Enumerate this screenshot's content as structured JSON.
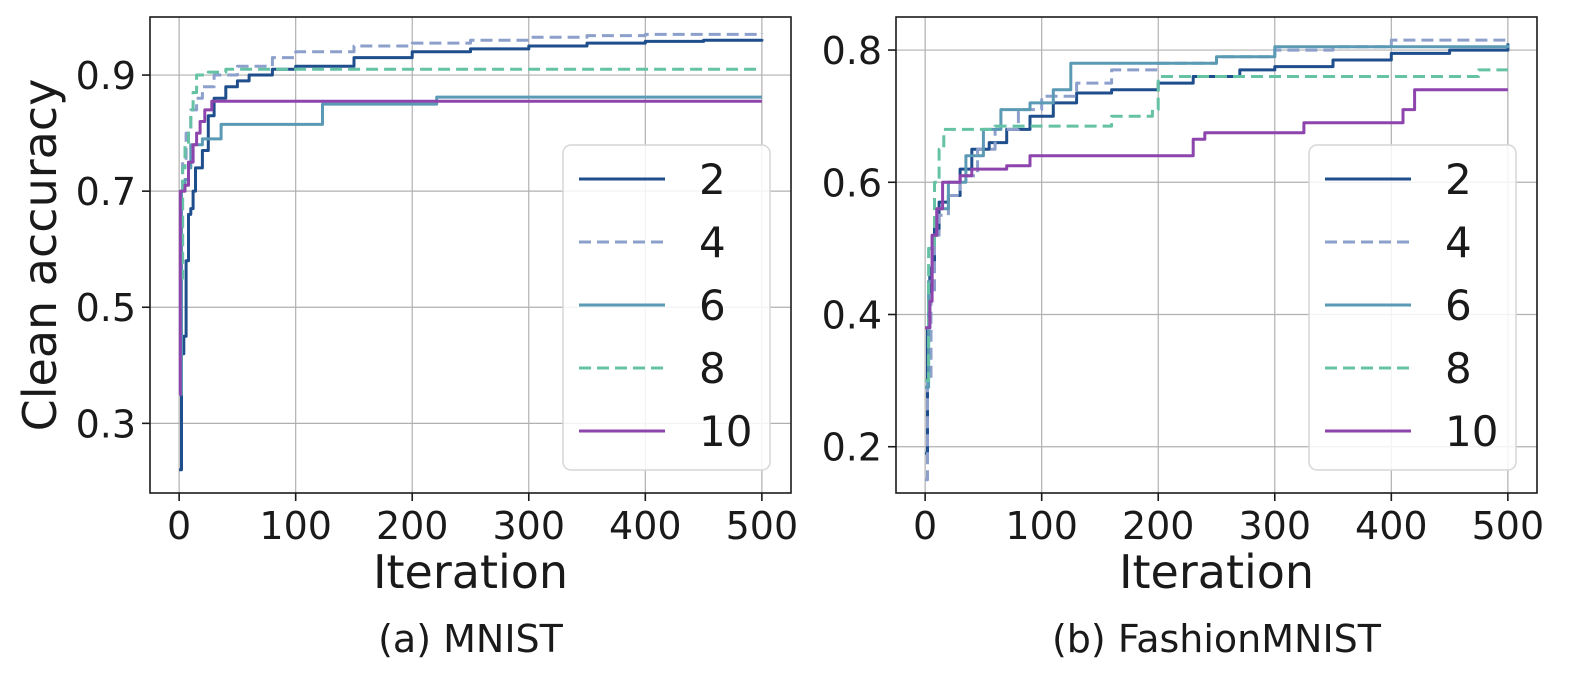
{
  "chart_data": [
    {
      "type": "line",
      "caption": "(a) MNIST",
      "xlabel": "Iteration",
      "ylabel": "Clean accuracy",
      "xlim": [
        -25,
        525
      ],
      "ylim": [
        0.18,
        1.0
      ],
      "xticks": [
        0,
        100,
        200,
        300,
        400,
        500
      ],
      "xtick_labels": [
        "0",
        "100",
        "200",
        "300",
        "400",
        "500"
      ],
      "yticks": [
        0.3,
        0.5,
        0.7,
        0.9
      ],
      "ytick_labels": [
        "0.3",
        "0.5",
        "0.7",
        "0.9"
      ],
      "grid": true,
      "legend_position": "lower-right",
      "series": [
        {
          "name": "2",
          "color": "#1f4e8c",
          "dash": "solid",
          "points": [
            [
              0,
              0.22
            ],
            [
              2,
              0.42
            ],
            [
              4,
              0.45
            ],
            [
              6,
              0.58
            ],
            [
              8,
              0.66
            ],
            [
              10,
              0.67
            ],
            [
              12,
              0.7
            ],
            [
              14,
              0.74
            ],
            [
              20,
              0.77
            ],
            [
              25,
              0.83
            ],
            [
              30,
              0.86
            ],
            [
              40,
              0.88
            ],
            [
              50,
              0.89
            ],
            [
              60,
              0.9
            ],
            [
              80,
              0.91
            ],
            [
              100,
              0.915
            ],
            [
              150,
              0.93
            ],
            [
              200,
              0.94
            ],
            [
              250,
              0.945
            ],
            [
              300,
              0.95
            ],
            [
              350,
              0.955
            ],
            [
              400,
              0.958
            ],
            [
              450,
              0.96
            ],
            [
              500,
              0.962
            ]
          ]
        },
        {
          "name": "4",
          "color": "#8da0cb",
          "dash": "dashed",
          "points": [
            [
              0,
              0.58
            ],
            [
              3,
              0.75
            ],
            [
              6,
              0.8
            ],
            [
              10,
              0.84
            ],
            [
              15,
              0.86
            ],
            [
              20,
              0.88
            ],
            [
              30,
              0.9
            ],
            [
              50,
              0.915
            ],
            [
              80,
              0.93
            ],
            [
              100,
              0.94
            ],
            [
              150,
              0.95
            ],
            [
              200,
              0.955
            ],
            [
              250,
              0.96
            ],
            [
              300,
              0.965
            ],
            [
              350,
              0.968
            ],
            [
              400,
              0.97
            ],
            [
              500,
              0.972
            ]
          ]
        },
        {
          "name": "6",
          "color": "#5b9ab5",
          "dash": "solid",
          "points": [
            [
              0,
              0.35
            ],
            [
              2,
              0.7
            ],
            [
              5,
              0.72
            ],
            [
              8,
              0.74
            ],
            [
              10,
              0.78
            ],
            [
              20,
              0.79
            ],
            [
              35,
              0.79
            ],
            [
              36,
              0.815
            ],
            [
              122,
              0.815
            ],
            [
              123,
              0.85
            ],
            [
              220,
              0.85
            ],
            [
              221,
              0.862
            ],
            [
              500,
              0.862
            ]
          ]
        },
        {
          "name": "8",
          "color": "#66c2a5",
          "dash": "dashed",
          "points": [
            [
              0,
              0.55
            ],
            [
              3,
              0.74
            ],
            [
              5,
              0.78
            ],
            [
              8,
              0.8
            ],
            [
              10,
              0.84
            ],
            [
              12,
              0.87
            ],
            [
              15,
              0.9
            ],
            [
              25,
              0.905
            ],
            [
              40,
              0.91
            ],
            [
              500,
              0.91
            ]
          ]
        },
        {
          "name": "10",
          "color": "#8e44ad",
          "dash": "solid",
          "points": [
            [
              0,
              0.35
            ],
            [
              1,
              0.7
            ],
            [
              5,
              0.71
            ],
            [
              8,
              0.75
            ],
            [
              12,
              0.78
            ],
            [
              15,
              0.8
            ],
            [
              18,
              0.82
            ],
            [
              22,
              0.84
            ],
            [
              28,
              0.855
            ],
            [
              500,
              0.855
            ]
          ]
        }
      ]
    },
    {
      "type": "line",
      "caption": "(b) FashionMNIST",
      "xlabel": "Iteration",
      "ylabel": "",
      "xlim": [
        -25,
        525
      ],
      "ylim": [
        0.13,
        0.85
      ],
      "xticks": [
        0,
        100,
        200,
        300,
        400,
        500
      ],
      "xtick_labels": [
        "0",
        "100",
        "200",
        "300",
        "400",
        "500"
      ],
      "yticks": [
        0.2,
        0.4,
        0.6,
        0.8
      ],
      "ytick_labels": [
        "0.2",
        "0.4",
        "0.6",
        "0.8"
      ],
      "grid": true,
      "legend_position": "lower-right",
      "series": [
        {
          "name": "2",
          "color": "#1f4e8c",
          "dash": "solid",
          "points": [
            [
              0,
              0.19
            ],
            [
              2,
              0.38
            ],
            [
              4,
              0.47
            ],
            [
              8,
              0.53
            ],
            [
              12,
              0.57
            ],
            [
              20,
              0.58
            ],
            [
              30,
              0.62
            ],
            [
              40,
              0.65
            ],
            [
              55,
              0.66
            ],
            [
              70,
              0.68
            ],
            [
              90,
              0.7
            ],
            [
              110,
              0.72
            ],
            [
              130,
              0.735
            ],
            [
              160,
              0.74
            ],
            [
              200,
              0.75
            ],
            [
              230,
              0.76
            ],
            [
              270,
              0.77
            ],
            [
              300,
              0.775
            ],
            [
              350,
              0.785
            ],
            [
              400,
              0.795
            ],
            [
              450,
              0.8
            ],
            [
              500,
              0.81
            ]
          ]
        },
        {
          "name": "4",
          "color": "#8da0cb",
          "dash": "dashed",
          "points": [
            [
              0,
              0.15
            ],
            [
              2,
              0.3
            ],
            [
              5,
              0.43
            ],
            [
              8,
              0.52
            ],
            [
              12,
              0.55
            ],
            [
              20,
              0.58
            ],
            [
              30,
              0.61
            ],
            [
              45,
              0.65
            ],
            [
              60,
              0.68
            ],
            [
              80,
              0.71
            ],
            [
              100,
              0.73
            ],
            [
              130,
              0.75
            ],
            [
              160,
              0.77
            ],
            [
              200,
              0.78
            ],
            [
              250,
              0.79
            ],
            [
              300,
              0.8
            ],
            [
              350,
              0.805
            ],
            [
              400,
              0.815
            ],
            [
              500,
              0.818
            ]
          ]
        },
        {
          "name": "6",
          "color": "#5b9ab5",
          "dash": "solid",
          "points": [
            [
              0,
              0.29
            ],
            [
              3,
              0.45
            ],
            [
              6,
              0.52
            ],
            [
              10,
              0.56
            ],
            [
              20,
              0.6
            ],
            [
              35,
              0.64
            ],
            [
              50,
              0.68
            ],
            [
              65,
              0.71
            ],
            [
              90,
              0.72
            ],
            [
              110,
              0.74
            ],
            [
              125,
              0.78
            ],
            [
              180,
              0.78
            ],
            [
              250,
              0.79
            ],
            [
              300,
              0.805
            ],
            [
              400,
              0.805
            ],
            [
              500,
              0.808
            ]
          ]
        },
        {
          "name": "8",
          "color": "#66c2a5",
          "dash": "dashed",
          "points": [
            [
              0,
              0.3
            ],
            [
              3,
              0.5
            ],
            [
              8,
              0.6
            ],
            [
              12,
              0.65
            ],
            [
              16,
              0.68
            ],
            [
              50,
              0.68
            ],
            [
              60,
              0.685
            ],
            [
              150,
              0.685
            ],
            [
              160,
              0.7
            ],
            [
              195,
              0.71
            ],
            [
              200,
              0.76
            ],
            [
              470,
              0.76
            ],
            [
              475,
              0.77
            ],
            [
              500,
              0.77
            ]
          ]
        },
        {
          "name": "10",
          "color": "#8e44ad",
          "dash": "solid",
          "points": [
            [
              0,
              0.38
            ],
            [
              4,
              0.42
            ],
            [
              6,
              0.52
            ],
            [
              10,
              0.56
            ],
            [
              15,
              0.6
            ],
            [
              30,
              0.61
            ],
            [
              40,
              0.62
            ],
            [
              70,
              0.625
            ],
            [
              90,
              0.64
            ],
            [
              225,
              0.64
            ],
            [
              230,
              0.665
            ],
            [
              240,
              0.675
            ],
            [
              320,
              0.675
            ],
            [
              325,
              0.69
            ],
            [
              405,
              0.69
            ],
            [
              410,
              0.71
            ],
            [
              420,
              0.74
            ],
            [
              500,
              0.74
            ]
          ]
        }
      ]
    }
  ]
}
